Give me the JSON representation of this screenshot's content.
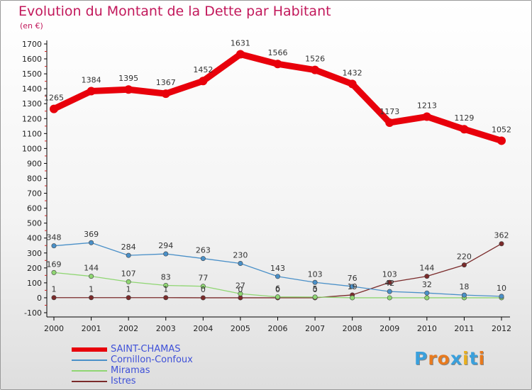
{
  "title": "Evolution du Montant de la Dette par Habitant",
  "unit_label": "(en €)",
  "logo": {
    "text": "Proxiti",
    "letter_colors": [
      "#3aa0dc",
      "#e87a1e",
      "#e87a1e",
      "#3aa0dc",
      "#e8b020",
      "#3aa0dc",
      "#e87a1e"
    ]
  },
  "chart_data": {
    "type": "line",
    "title": "Evolution du Montant de la Dette par Habitant",
    "ylabel": "(en €)",
    "xlabel": "",
    "x": [
      2000,
      2001,
      2002,
      2003,
      2004,
      2005,
      2006,
      2007,
      2008,
      2009,
      2010,
      2011,
      2012
    ],
    "ylim": [
      -100,
      1700
    ],
    "yticks": [
      -100,
      0,
      100,
      200,
      300,
      400,
      500,
      600,
      700,
      800,
      900,
      1000,
      1100,
      1200,
      1300,
      1400,
      1500,
      1600,
      1700
    ],
    "grid": false,
    "legend_position": "bottom-left",
    "series": [
      {
        "name": "SAINT-CHAMAS",
        "color": "#e8000b",
        "values": [
          1265,
          1384,
          1395,
          1367,
          1452,
          1631,
          1566,
          1526,
          1432,
          1173,
          1213,
          1129,
          1052
        ]
      },
      {
        "name": "Cornillon-Confoux",
        "color": "#4a90c8",
        "values": [
          348,
          369,
          284,
          294,
          263,
          230,
          143,
          103,
          76,
          42,
          32,
          18,
          10
        ]
      },
      {
        "name": "Miramas",
        "color": "#8fd672",
        "values": [
          169,
          144,
          107,
          83,
          77,
          27,
          6,
          5,
          0,
          0,
          0,
          0,
          0
        ]
      },
      {
        "name": "Istres",
        "color": "#7a2a2a",
        "values": [
          1,
          1,
          1,
          1,
          0,
          0,
          0,
          0,
          19,
          103,
          144,
          220,
          362
        ]
      }
    ],
    "data_labels": [
      [
        "1265",
        "1384",
        "1395",
        "1367",
        "1452",
        "1631",
        "1566",
        "1526",
        "1432",
        "1173",
        "1213",
        "1129",
        "1052"
      ],
      [
        "348",
        "369",
        "284",
        "294",
        "263",
        "230",
        "143",
        "103",
        "76",
        "42",
        "32",
        "18",
        "10"
      ],
      [
        "169",
        "144",
        "107",
        "83",
        "77",
        "27",
        "6",
        "5",
        "",
        "",
        "",
        "",
        ""
      ],
      [
        "1",
        "1",
        "1",
        "1",
        "0",
        "0",
        "0",
        "0",
        "19",
        "103",
        "144",
        "220",
        "362"
      ]
    ]
  }
}
